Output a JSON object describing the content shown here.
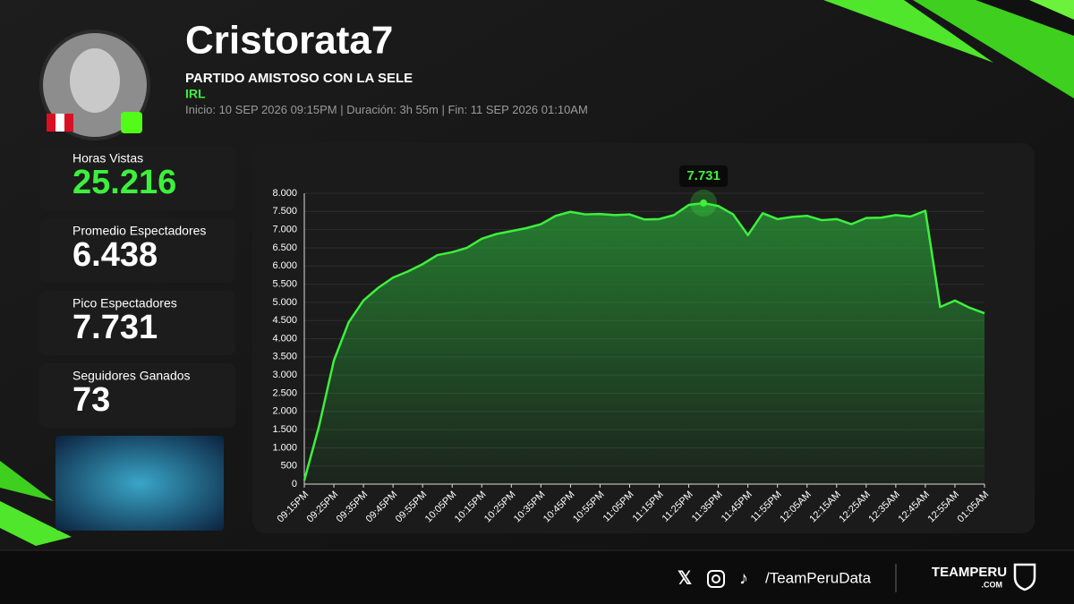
{
  "header": {
    "name": "Cristorata7",
    "title": "PARTIDO AMISTOSO CON LA SELE",
    "category": "IRL",
    "meta": [
      "Inicio: 10 SEP 2026 09:15PM",
      "Duración: 3h 55m",
      "Fin: 11 SEP 2026 01:10AM"
    ]
  },
  "stats": [
    {
      "label": "Horas Vistas",
      "value": "25.216"
    },
    {
      "label": "Promedio Espectadores",
      "value": "6.438"
    },
    {
      "label": "Pico Espectadores",
      "value": "7.731"
    },
    {
      "label": "Seguidores Ganados",
      "value": "73"
    }
  ],
  "footer": {
    "handle": "/TeamPeruData",
    "brand": "TEAMPERU",
    "brand_sub": ".COM"
  },
  "chart_data": {
    "type": "area",
    "color": "#3df03d",
    "categories": [
      "09:15PM",
      null,
      "09:25PM",
      null,
      "09:35PM",
      null,
      "09:45PM",
      null,
      "09:55PM",
      null,
      "10:05PM",
      null,
      "10:15PM",
      null,
      "10:25PM",
      null,
      "10:35PM",
      null,
      "10:45PM",
      null,
      "10:55PM",
      null,
      "11:05PM",
      null,
      "11:15PM",
      null,
      "11:25PM",
      null,
      "11:35PM",
      null,
      "11:45PM",
      null,
      "11:55PM",
      null,
      "12:05AM",
      null,
      "12:15AM",
      null,
      "12:25AM",
      null,
      "12:35AM",
      null,
      "12:45AM",
      null,
      "12:55AM",
      null,
      "01:05AM"
    ],
    "values": [
      100,
      1600,
      3400,
      4450,
      5050,
      5400,
      5680,
      5850,
      6050,
      6300,
      6380,
      6500,
      6750,
      6880,
      6960,
      7040,
      7150,
      7380,
      7490,
      7420,
      7430,
      7400,
      7420,
      7280,
      7290,
      7400,
      7680,
      7731,
      7650,
      7420,
      6850,
      7450,
      7290,
      7350,
      7380,
      7260,
      7290,
      7150,
      7320,
      7330,
      7400,
      7360,
      7520,
      4870,
      5050,
      4850,
      4700
    ],
    "value_labels": [
      null,
      null,
      null,
      null,
      null,
      null,
      null,
      null,
      null,
      null,
      null,
      null,
      null,
      null,
      null,
      null,
      null,
      null,
      null,
      null,
      null,
      null,
      null,
      null,
      null,
      null,
      null,
      "7.731",
      null,
      null,
      null,
      null,
      null,
      null,
      null,
      null,
      null,
      null,
      null,
      null,
      null,
      null,
      null,
      null,
      null,
      null,
      null
    ],
    "ylim": [
      0,
      8000
    ],
    "yticks": [
      0,
      500,
      {
        "value": 1000,
        "label": "1.000"
      },
      {
        "value": 1500,
        "label": "1.500"
      },
      {
        "value": 2000,
        "label": "2.000"
      },
      {
        "value": 2500,
        "label": "2.500"
      },
      {
        "value": 3000,
        "label": "3.000"
      },
      {
        "value": 3500,
        "label": "3.500"
      },
      {
        "value": 4000,
        "label": "4.000"
      },
      {
        "value": 4500,
        "label": "4.500"
      },
      {
        "value": 5000,
        "label": "5.000"
      },
      {
        "value": 5500,
        "label": "5.500"
      },
      {
        "value": 6000,
        "label": "6.000"
      },
      {
        "value": 6500,
        "label": "6.500"
      },
      {
        "value": 7000,
        "label": "7.000"
      },
      {
        "value": 7500,
        "label": "7.500"
      },
      {
        "value": 8000,
        "label": "8.000"
      }
    ],
    "grid": true
  }
}
